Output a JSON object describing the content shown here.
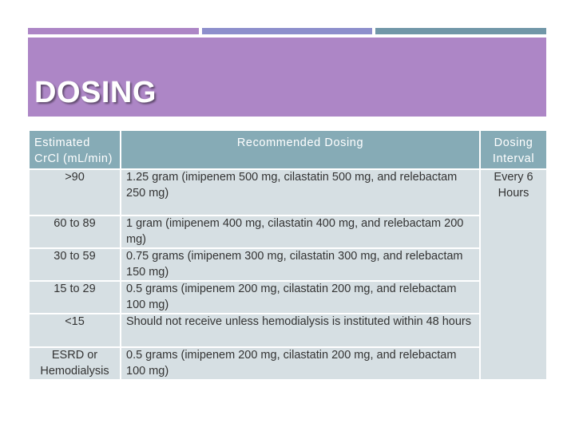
{
  "slide": {
    "title": "DOSING",
    "accent_colors": [
      "#ad86c6",
      "#8d8fcc",
      "#7197a8"
    ]
  },
  "table": {
    "headers": {
      "crcl": "Estimated CrCl (mL/min)",
      "dose": "Recommended Dosing",
      "interval": "Dosing Interval"
    },
    "rows": [
      {
        "crcl": ">90",
        "dose": "1.25 gram (imipenem 500 mg, cilastatin 500 mg, and relebactam 250 mg)"
      },
      {
        "crcl": "60 to 89",
        "dose": "1 gram (imipenem 400 mg, cilastatin 400 mg, and relebactam 200 mg)"
      },
      {
        "crcl": "30 to 59",
        "dose": "0.75 grams (imipenem 300 mg, cilastatin 300 mg, and relebactam 150 mg)"
      },
      {
        "crcl": "15 to 29",
        "dose": "0.5 grams (imipenem 200 mg, cilastatin 200 mg, and relebactam 100 mg)"
      },
      {
        "crcl": "<15",
        "dose": "Should not receive unless hemodialysis is instituted within 48 hours"
      },
      {
        "crcl": "ESRD or Hemodialysis",
        "dose": "0.5 grams (imipenem 200 mg, cilastatin 200 mg, and relebactam 100 mg)"
      }
    ],
    "interval_value": "Every 6 Hours"
  }
}
